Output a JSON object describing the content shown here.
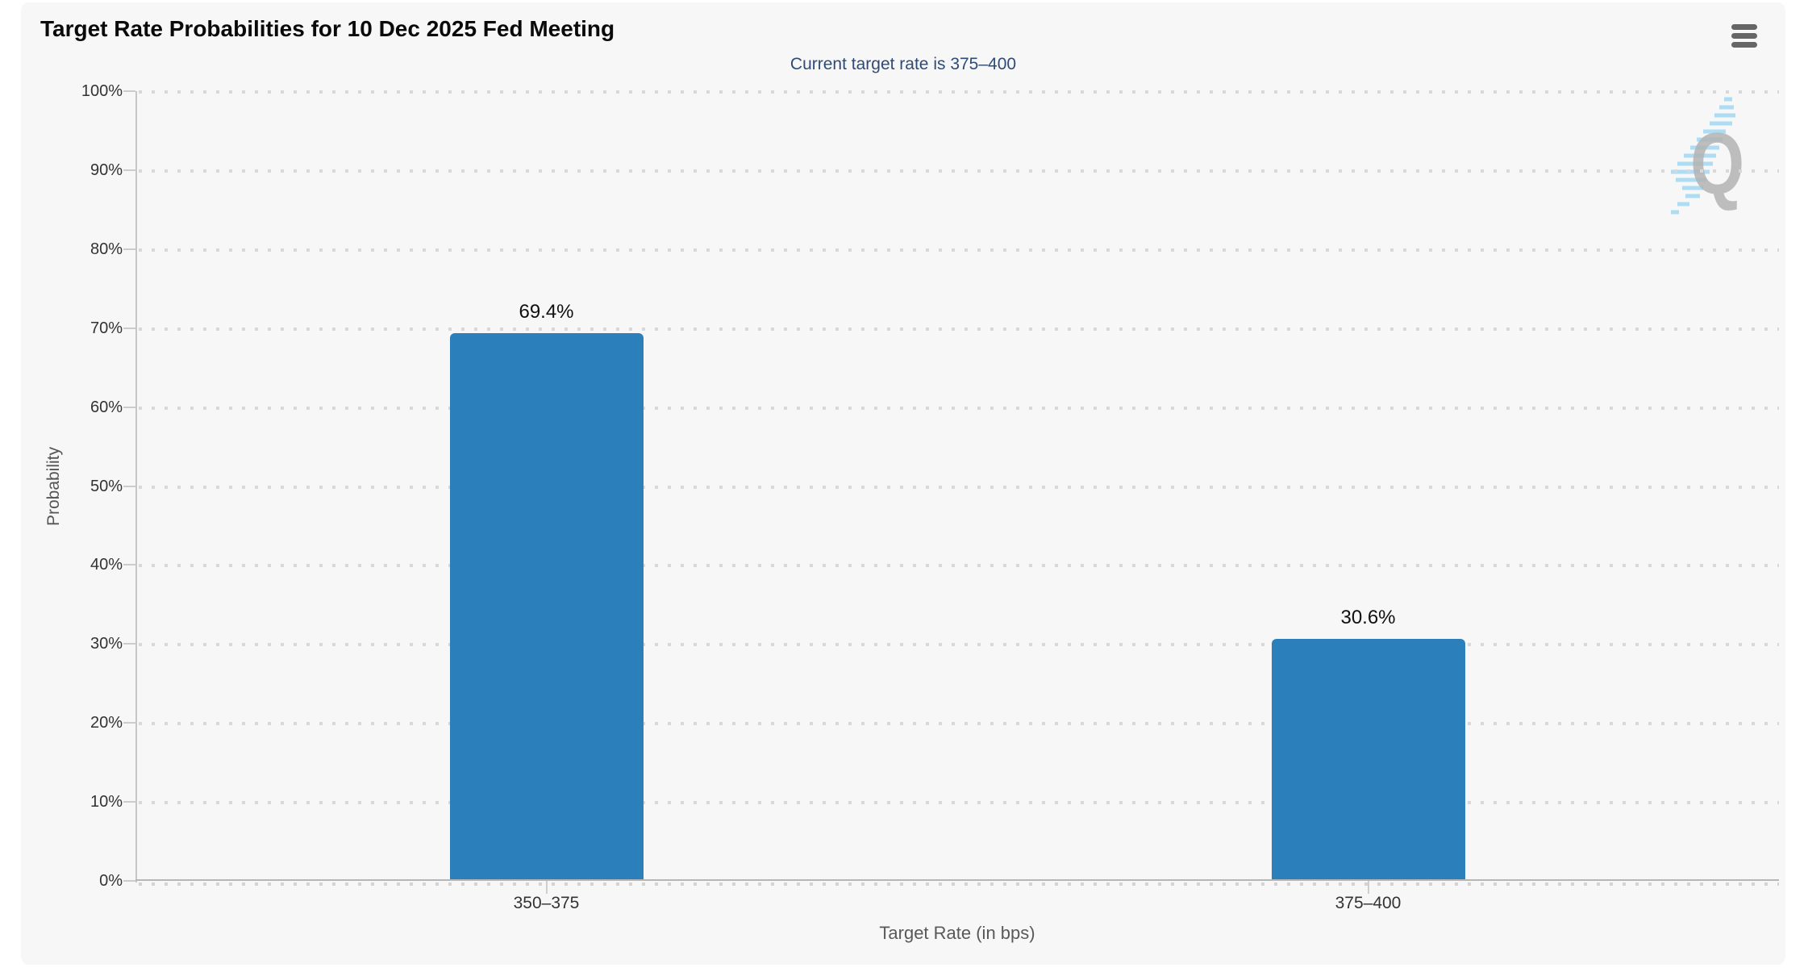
{
  "header": {
    "menu_label": "Chart context menu"
  },
  "chart_data": {
    "type": "bar",
    "title": "Target Rate Probabilities for 10 Dec 2025 Fed Meeting",
    "subtitle": "Current target rate is 375–400",
    "categories": [
      "350–375",
      "375–400"
    ],
    "values": [
      69.4,
      30.6
    ],
    "data_labels": [
      "69.4%",
      "30.6%"
    ],
    "xlabel": "Target Rate (in bps)",
    "ylabel": "Probability",
    "ylim": [
      0,
      100
    ],
    "ytick_step": 10,
    "ytick_labels": [
      "0%",
      "10%",
      "20%",
      "30%",
      "40%",
      "50%",
      "60%",
      "70%",
      "80%",
      "90%",
      "100%"
    ],
    "grid": "dotted-horizontal",
    "legend": "none",
    "bar_color": "#2b7fbb"
  },
  "watermark": {
    "letter": "Q"
  },
  "colors": {
    "panel_background": "#f7f7f7",
    "page_background": "#ffffff",
    "bar": "#2b7fbb",
    "subtitle_text": "#2e4b78",
    "title_text": "#0a0a0a",
    "axis_label_text": "#333333",
    "axis_title_text": "#555555",
    "gridline_dots": "#d8d8d8",
    "menu_icon": "#666666",
    "watermark_q": "#b3b3b3",
    "watermark_stripes": "#a6daf3"
  }
}
